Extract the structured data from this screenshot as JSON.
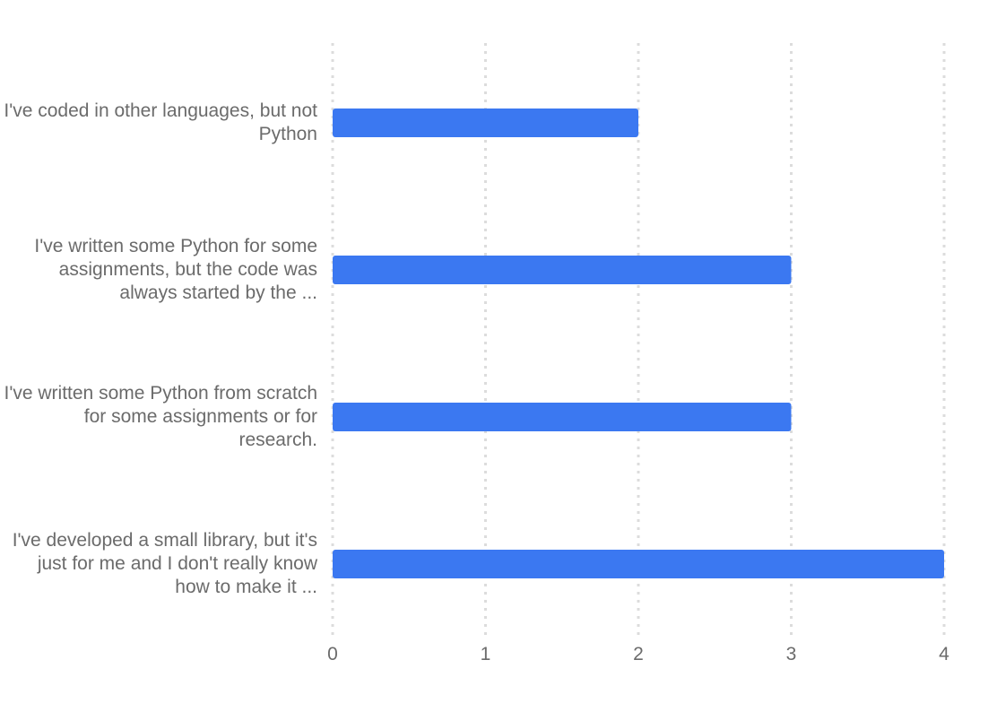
{
  "chart_data": {
    "type": "bar",
    "orientation": "horizontal",
    "categories": [
      "I've coded in other languages, but not Python",
      "I've written some Python for some assignments, but the code was always started by the ...",
      "I've written some Python from scratch for some assignments or for research.",
      "I've developed a small library, but it's just for me and I don't really know how to make it ..."
    ],
    "values": [
      2,
      3,
      3,
      4
    ],
    "xlim": [
      0,
      4
    ],
    "xticks": [
      "0",
      "1",
      "2",
      "3",
      "4"
    ],
    "grid": "vertical dotted",
    "bar_color": "#3b78f1",
    "grid_color": "#dcdcdc",
    "text_color": "#6b6b6b",
    "title": "",
    "xlabel": "",
    "ylabel": ""
  }
}
